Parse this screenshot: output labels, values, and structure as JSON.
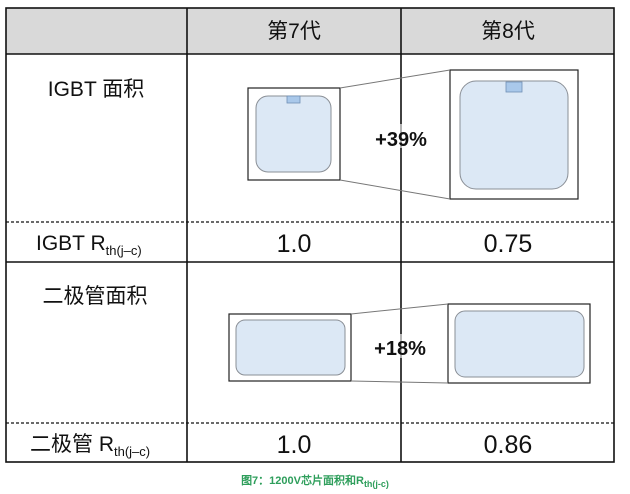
{
  "header": {
    "col1": "第7代",
    "col2": "第8代",
    "header_bg": "#d9d9d9"
  },
  "rows": {
    "igbt_area": {
      "label": "IGBT 面积",
      "change": "+39%"
    },
    "igbt_rth": {
      "label": "IGBT R",
      "sub": "th(j–c)",
      "gen7": "1.0",
      "gen8": "0.75"
    },
    "diode_area": {
      "label": "二极管面积",
      "change": "+18%"
    },
    "diode_rth": {
      "label": "二极管 R",
      "sub": "th(j–c)",
      "gen7": "1.0",
      "gen8": "0.86"
    }
  },
  "caption": {
    "text": "图7：1200V芯片面积和R",
    "sub": "th(j-c)",
    "color": "#2e9e5b"
  },
  "colors": {
    "chip_fill": "#dce8f5",
    "chip_stroke": "#8a8f96",
    "pad_fill": "#a9c8ea"
  }
}
